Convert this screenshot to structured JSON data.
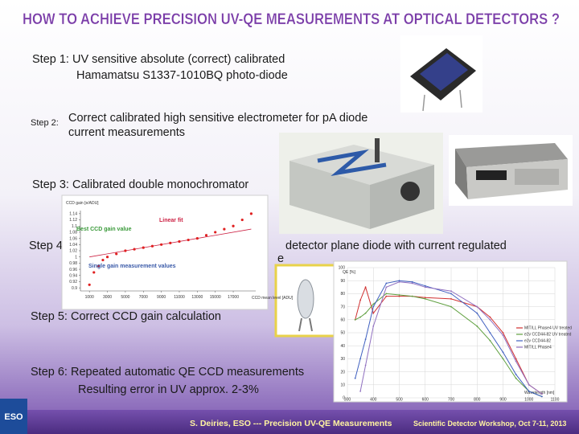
{
  "header": {
    "title": "How to achieve precision UV-QE measurements at optical detectors ?"
  },
  "steps": [
    {
      "lines": [
        "Step 1: UV sensitive absolute (correct) calibrated",
        "Hamamatsu S1337-1010BQ photo-diode"
      ]
    },
    {
      "label": "Step 2:",
      "lines": [
        "Correct calibrated high sensitive electrometer for pA diode",
        "current measurements"
      ]
    },
    {
      "lines": [
        "Step 3: Calibrated double monochromator"
      ]
    },
    {
      "lines": [
        "Step 4",
        "detector plane diode with current regulated",
        "e"
      ]
    },
    {
      "lines": [
        "Step 5: Correct CCD gain calculation"
      ]
    },
    {
      "lines": [
        "Step 6: Repeated automatic QE CCD measurements",
        "Resulting error in UV approx. 2-3%"
      ]
    }
  ],
  "gain_chart": {
    "type": "scatter",
    "y_label": "CCD gain [e/ADU]",
    "x_label": "CCD mean level [ADU]",
    "annotations": [
      "Linear fit",
      "Best CCD gain value",
      "Single gain measurement values"
    ],
    "x": [
      1000,
      1500,
      2000,
      2500,
      3000,
      4000,
      5000,
      6000,
      7000,
      8000,
      9000,
      10000,
      11000,
      12000,
      13000,
      14000,
      15000,
      16000,
      17000,
      18000,
      19000
    ],
    "values": [
      0.91,
      0.95,
      0.97,
      0.99,
      1.0,
      1.01,
      1.02,
      1.025,
      1.03,
      1.035,
      1.04,
      1.045,
      1.05,
      1.055,
      1.06,
      1.07,
      1.08,
      1.09,
      1.1,
      1.12,
      1.14
    ],
    "color": "#e02020",
    "fit": {
      "x": [
        1000,
        19000
      ],
      "values": [
        1.0,
        1.09
      ],
      "color": "#cc2244"
    },
    "xlim": [
      0,
      19500
    ],
    "ylim": [
      0.89,
      1.15
    ],
    "xticks": [
      1000,
      3000,
      5000,
      7000,
      9000,
      11000,
      13000,
      15000,
      17000
    ],
    "yticks": [
      0.9,
      0.92,
      0.94,
      0.96,
      0.98,
      1,
      1.02,
      1.04,
      1.06,
      1.08,
      1.1,
      1.12,
      1.14
    ]
  },
  "qe_chart": {
    "type": "line",
    "y_label": "QE [%]",
    "x_label": "Wavelength [nm]",
    "x": [
      330,
      350,
      370,
      400,
      450,
      500,
      550,
      600,
      700,
      800,
      850,
      900,
      950,
      1000,
      1050
    ],
    "series": [
      {
        "name": "MIT/LL Phase4 UV treated",
        "color": "#d03030",
        "values": [
          60,
          75,
          85,
          65,
          78,
          78,
          78,
          77,
          76,
          70,
          62,
          50,
          30,
          10,
          3
        ]
      },
      {
        "name": "e2v CCD44-82 UV treated",
        "color": "#60a040",
        "values": [
          60,
          62,
          65,
          72,
          80,
          79,
          78,
          76,
          70,
          55,
          44,
          30,
          15,
          5,
          1
        ]
      },
      {
        "name": "e2v CCD44-82",
        "color": "#4060c0",
        "values": [
          15,
          30,
          45,
          70,
          88,
          90,
          89,
          86,
          80,
          65,
          50,
          35,
          18,
          5,
          1
        ]
      },
      {
        "name": "MIT/LL Phase4",
        "color": "#9070c0",
        "values": [
          null,
          5,
          25,
          55,
          85,
          89,
          88,
          85,
          82,
          70,
          60,
          48,
          28,
          10,
          3
        ]
      }
    ],
    "xlim": [
      300,
      1100
    ],
    "ylim": [
      0,
      100
    ],
    "xticks": [
      300,
      400,
      500,
      600,
      700,
      800,
      900,
      1000,
      1100
    ],
    "yticks": [
      0,
      10,
      20,
      30,
      40,
      50,
      60,
      70,
      80,
      90,
      100
    ],
    "grid": true
  },
  "footer": {
    "logo": "ESO",
    "left": "S. Deiries, ESO --- Precision UV-QE Measurements",
    "right": "Scientific Detector Workshop, Oct 7-11, 2013"
  }
}
